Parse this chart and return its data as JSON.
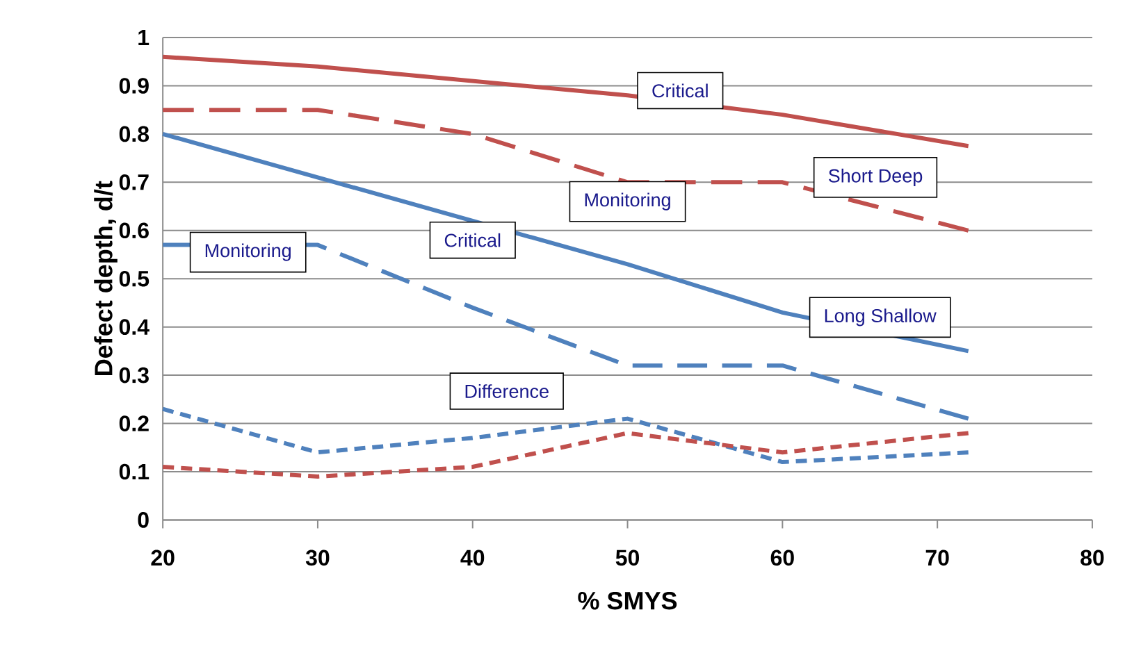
{
  "chart_data": {
    "type": "line",
    "xlabel": "% SMYS",
    "ylabel": "Defect depth, d/t",
    "xlim": [
      20,
      80
    ],
    "xticks": [
      20,
      30,
      40,
      50,
      60,
      70,
      80
    ],
    "ylim": [
      0,
      1
    ],
    "yticks": [
      0,
      0.1,
      0.2,
      0.3,
      0.4,
      0.5,
      0.6,
      0.7,
      0.8,
      0.9,
      1
    ],
    "grid": "y",
    "series": [
      {
        "color": "#c0504d",
        "line_style": "solid",
        "x": [
          20,
          30,
          40,
          50,
          60,
          72
        ],
        "values": [
          0.96,
          0.94,
          0.91,
          0.88,
          0.84,
          0.775
        ]
      },
      {
        "color": "#c0504d",
        "line_style": "dashed",
        "x": [
          20,
          30,
          40,
          50,
          60,
          72
        ],
        "values": [
          0.85,
          0.85,
          0.8,
          0.7,
          0.7,
          0.6
        ]
      },
      {
        "color": "#4f81bd",
        "line_style": "solid",
        "x": [
          20,
          30,
          40,
          50,
          60,
          72
        ],
        "values": [
          0.8,
          0.71,
          0.62,
          0.53,
          0.43,
          0.35
        ]
      },
      {
        "color": "#4f81bd",
        "line_style": "dashed",
        "x": [
          20,
          30,
          40,
          50,
          60,
          72
        ],
        "values": [
          0.57,
          0.57,
          0.44,
          0.32,
          0.32,
          0.21
        ]
      },
      {
        "color": "#4f81bd",
        "line_style": "dotted",
        "x": [
          20,
          30,
          40,
          50,
          60,
          72
        ],
        "values": [
          0.23,
          0.14,
          0.17,
          0.21,
          0.12,
          0.14
        ]
      },
      {
        "color": "#c0504d",
        "line_style": "dotted",
        "x": [
          20,
          30,
          40,
          50,
          60,
          72
        ],
        "values": [
          0.11,
          0.09,
          0.11,
          0.18,
          0.14,
          0.18
        ]
      }
    ],
    "annotations": [
      "Critical",
      "Short Deep",
      "Monitoring",
      "Critical",
      "Monitoring",
      "Long Shallow",
      "Difference"
    ]
  }
}
